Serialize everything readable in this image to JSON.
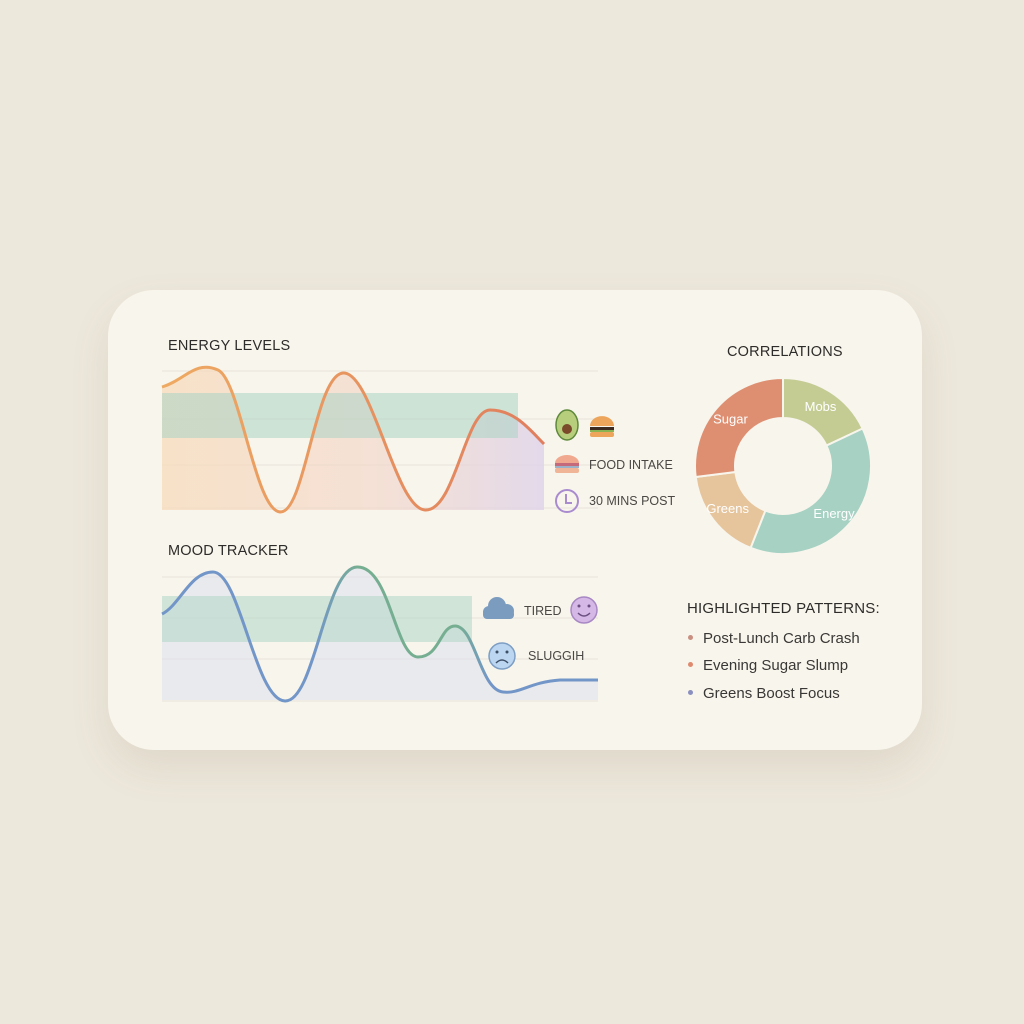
{
  "energy": {
    "title": "ENERGY LEVELS",
    "legend": [
      {
        "icon": "avocado-icon"
      },
      {
        "icon": "burger-icon"
      },
      {
        "icon": "burger-icon",
        "label": "FOOD INTAKE"
      },
      {
        "icon": "clock-icon",
        "label": "30 MINS POST"
      }
    ]
  },
  "mood": {
    "title": "MOOD TRACKER",
    "legend": [
      {
        "icon": "cloud-icon",
        "label": "TIRED"
      },
      {
        "icon": "smiley-face-icon"
      },
      {
        "icon": "sad-face-icon",
        "label": "SLUGGIH"
      }
    ]
  },
  "correlations": {
    "title": "CORRELATIONS",
    "chart_data": {
      "type": "pie",
      "categories": [
        "Mobs",
        "Energy",
        "Greens",
        "Sugar"
      ],
      "values": [
        18,
        38,
        17,
        27
      ],
      "colors": [
        "#c4cc94",
        "#a6d1c3",
        "#e6c49c",
        "#de8f72"
      ],
      "donut": true
    }
  },
  "patterns": {
    "title": "HIGHLIGHTED PATTERNS:",
    "items": [
      {
        "label": "Post-Lunch Carb Crash",
        "color": "#c98f80"
      },
      {
        "label": "Evening Sugar Slump",
        "color": "#de8a6e"
      },
      {
        "label": "Greens Boost Focus",
        "color": "#8a8fbf"
      }
    ]
  }
}
